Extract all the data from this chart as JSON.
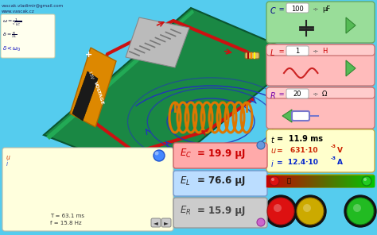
{
  "bg_color": "#55CCEE",
  "watermark1": "vascak.vladimir@gmail.com",
  "watermark2": "www.vascak.cz",
  "panel_green": "#99DD99",
  "panel_red": "#FFBBBB",
  "panel_pink_dark": "#FFAAAA",
  "panel_yellow": "#FFFFCC",
  "panel_blue_light": "#AACCFF",
  "panel_gray": "#BBBBBB",
  "formula_bg": "#FFFFEE",
  "board_color": "#1A7A44",
  "traffic_bar": "#88CC00",
  "C_value": "100",
  "C_unit": "μF",
  "L_value": "1",
  "L_unit": "H",
  "R_value": "20",
  "R_unit": "Ω",
  "t_value": "11.9 ms",
  "u_value": "631 ·10",
  "u_exp": "-3",
  "u_unit": " V",
  "i_value": "12.4 ·10",
  "i_exp": "-3",
  "i_unit": " A",
  "EC_text": "19.9 μJ",
  "EL_text": "76.6 μJ",
  "ER_text": "15.9 μJ",
  "T_text": "T = 63.1 ms",
  "f_text": "f = 15.8 Hz"
}
